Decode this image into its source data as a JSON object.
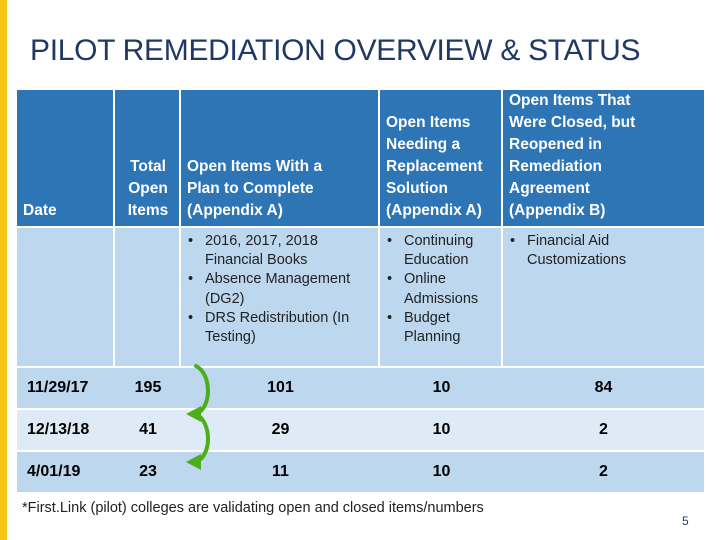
{
  "slide": {
    "title": "PILOT REMEDIATION OVERVIEW & STATUS",
    "footnote": "*First.Link (pilot) colleges are validating open and closed items/numbers",
    "page_number": "5",
    "colors": {
      "accent_bar": "#F5C518",
      "header_fill": "#2E75B6",
      "band_fill": "#BDD7EE",
      "alt_fill": "#DEEBF7",
      "arrow_green": "#4CAF1A",
      "title_color": "#1F3864"
    }
  },
  "table": {
    "headers": {
      "date": "Date",
      "total_open": [
        "Total",
        "Open",
        "Items"
      ],
      "plan_to_complete": [
        "Open Items With a",
        "Plan to Complete",
        "(Appendix A)"
      ],
      "replacement": [
        "Open Items",
        "Needing a",
        "Replacement",
        "Solution",
        "(Appendix A)"
      ],
      "closed_reopened": [
        "Open Items That",
        "Were Closed, but",
        "Reopened in",
        "Remediation",
        "Agreement",
        "(Appendix B)"
      ]
    },
    "bullets": {
      "plan_to_complete": [
        "2016, 2017, 2018 Financial Books",
        "Absence Management (DG2)",
        "DRS Redistribution (In Testing)"
      ],
      "replacement": [
        "Continuing Education",
        "Online Admissions",
        "Budget Planning"
      ],
      "closed_reopened": [
        "Financial Aid Customizations"
      ]
    },
    "rows": [
      {
        "date": "11/29/17",
        "total": "195",
        "plan": "101",
        "replacement": "10",
        "reopened": "84"
      },
      {
        "date": "12/13/18",
        "total": "41",
        "plan": "29",
        "replacement": "10",
        "reopened": "2"
      },
      {
        "date": "4/01/19",
        "total": "23",
        "plan": "11",
        "replacement": "10",
        "reopened": "2"
      }
    ]
  },
  "icons": [
    "curved-down-arrow-icon",
    "curved-down-arrow-icon"
  ]
}
